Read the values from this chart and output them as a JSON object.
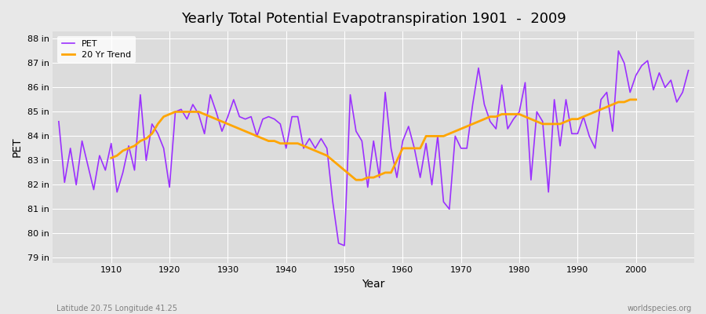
{
  "title": "Yearly Total Potential Evapotranspiration 1901  -  2009",
  "xlabel": "Year",
  "ylabel": "PET",
  "footnote_left": "Latitude 20.75 Longitude 41.25",
  "footnote_right": "worldspecies.org",
  "legend_pet": "PET",
  "legend_trend": "20 Yr Trend",
  "pet_color": "#9B30FF",
  "trend_color": "#FFA500",
  "bg_color": "#E8E8E8",
  "plot_bg_color": "#DCDCDC",
  "ylim": [
    78.8,
    88.3
  ],
  "yticks": [
    79,
    80,
    81,
    82,
    83,
    84,
    85,
    86,
    87,
    88
  ],
  "years": [
    1901,
    1902,
    1903,
    1904,
    1905,
    1906,
    1907,
    1908,
    1909,
    1910,
    1911,
    1912,
    1913,
    1914,
    1915,
    1916,
    1917,
    1918,
    1919,
    1920,
    1921,
    1922,
    1923,
    1924,
    1925,
    1926,
    1927,
    1928,
    1929,
    1930,
    1931,
    1932,
    1933,
    1934,
    1935,
    1936,
    1937,
    1938,
    1939,
    1940,
    1941,
    1942,
    1943,
    1944,
    1945,
    1946,
    1947,
    1948,
    1949,
    1950,
    1951,
    1952,
    1953,
    1954,
    1955,
    1956,
    1957,
    1958,
    1959,
    1960,
    1961,
    1962,
    1963,
    1964,
    1965,
    1966,
    1967,
    1968,
    1969,
    1970,
    1971,
    1972,
    1973,
    1974,
    1975,
    1976,
    1977,
    1978,
    1979,
    1980,
    1981,
    1982,
    1983,
    1984,
    1985,
    1986,
    1987,
    1988,
    1989,
    1990,
    1991,
    1992,
    1993,
    1994,
    1995,
    1996,
    1997,
    1998,
    1999,
    2000,
    2001,
    2002,
    2003,
    2004,
    2005,
    2006,
    2007,
    2008,
    2009
  ],
  "pet_values": [
    84.6,
    82.1,
    83.5,
    82.0,
    83.8,
    82.8,
    81.8,
    83.2,
    82.6,
    83.7,
    81.7,
    82.5,
    83.6,
    82.6,
    85.7,
    83.0,
    84.5,
    84.1,
    83.5,
    81.9,
    85.0,
    85.1,
    84.7,
    85.3,
    84.9,
    84.1,
    85.7,
    85.0,
    84.2,
    84.8,
    85.5,
    84.8,
    84.7,
    84.8,
    84.0,
    84.7,
    84.8,
    84.7,
    84.5,
    83.5,
    84.8,
    84.8,
    83.5,
    83.9,
    83.5,
    83.9,
    83.5,
    81.3,
    79.6,
    79.5,
    85.7,
    84.2,
    83.8,
    81.9,
    83.8,
    82.3,
    85.8,
    83.5,
    82.3,
    83.8,
    84.4,
    83.5,
    82.3,
    83.7,
    82.0,
    84.0,
    81.3,
    81.0,
    84.0,
    83.5,
    83.5,
    85.3,
    86.8,
    85.3,
    84.6,
    84.3,
    86.1,
    84.3,
    84.7,
    85.0,
    86.2,
    82.2,
    85.0,
    84.6,
    81.7,
    85.5,
    83.6,
    85.5,
    84.1,
    84.1,
    84.8,
    84.0,
    83.5,
    85.5,
    85.8,
    84.2,
    87.5,
    87.0,
    85.8,
    86.5,
    86.9,
    87.1,
    85.9,
    86.6,
    86.0,
    86.3,
    85.4,
    85.8,
    86.7
  ],
  "trend_values": [
    null,
    null,
    null,
    null,
    null,
    null,
    null,
    null,
    null,
    83.1,
    83.2,
    83.4,
    83.5,
    83.6,
    83.8,
    83.9,
    84.1,
    84.5,
    84.8,
    84.9,
    85.0,
    85.0,
    85.0,
    85.0,
    85.0,
    84.9,
    84.8,
    84.7,
    84.6,
    84.5,
    84.4,
    84.3,
    84.2,
    84.1,
    84.0,
    83.9,
    83.8,
    83.8,
    83.7,
    83.7,
    83.7,
    83.7,
    83.6,
    83.5,
    83.4,
    83.3,
    83.2,
    83.0,
    82.8,
    82.6,
    82.4,
    82.2,
    82.2,
    82.3,
    82.3,
    82.4,
    82.5,
    82.5,
    83.0,
    83.5,
    83.5,
    83.5,
    83.5,
    84.0,
    84.0,
    84.0,
    84.0,
    84.1,
    84.2,
    84.3,
    84.4,
    84.5,
    84.6,
    84.7,
    84.8,
    84.8,
    84.9,
    84.9,
    84.9,
    84.9,
    84.8,
    84.7,
    84.6,
    84.5,
    84.5,
    84.5,
    84.5,
    84.6,
    84.7,
    84.7,
    84.8,
    84.9,
    85.0,
    85.1,
    85.2,
    85.3,
    85.4,
    85.4,
    85.5,
    85.5
  ]
}
